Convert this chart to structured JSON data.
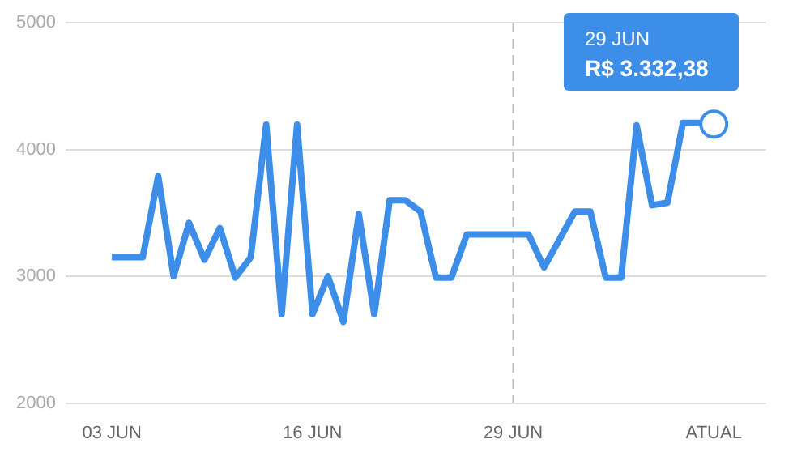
{
  "chart_data": {
    "type": "line",
    "categories": [
      "03 JUN",
      null,
      null,
      null,
      null,
      null,
      null,
      null,
      null,
      null,
      null,
      null,
      null,
      "16 JUN",
      null,
      null,
      null,
      null,
      null,
      null,
      null,
      null,
      null,
      null,
      null,
      null,
      "29 JUN",
      null,
      null,
      null,
      null,
      null,
      null,
      null,
      null,
      null,
      null,
      null,
      null,
      "ATUAL"
    ],
    "series": [
      {
        "color": "#3d8ee8",
        "values": [
          3150,
          3150,
          3150,
          3790,
          3000,
          3420,
          3130,
          3380,
          2990,
          3150,
          4195,
          2700,
          4195,
          2700,
          3000,
          2640,
          3490,
          2700,
          3600,
          3600,
          3510,
          2990,
          2990,
          3330,
          3330,
          3330,
          3330,
          3330,
          3070,
          3290,
          3510,
          3510,
          2990,
          2990,
          4190,
          3560,
          3580,
          4210,
          4210,
          4200
        ]
      }
    ],
    "ylim": [
      2000,
      5000
    ],
    "yticks": [
      2000,
      3000,
      4000,
      5000
    ],
    "grid": "y",
    "legend": false,
    "marker": "none",
    "line_style": "solid",
    "ref_lines": [
      {
        "axis": "x",
        "value": "29 JUN",
        "color": "#bbbbbb",
        "line_style": "dashed"
      }
    ],
    "annotations": [
      "29 JUN",
      "R$ 3.332,38"
    ]
  }
}
